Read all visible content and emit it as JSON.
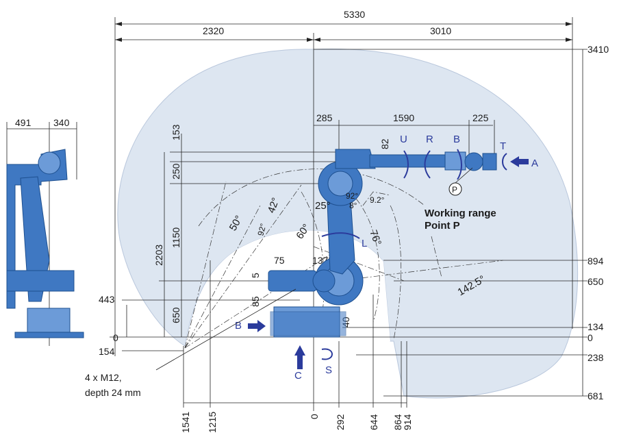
{
  "colors": {
    "working_area": "#dde6f1",
    "robot_body": "#3f78c2",
    "arrow": "#2b3b9c",
    "line": "#222222"
  },
  "dimensions": {
    "top_total": "5330",
    "top_left": "2320",
    "top_right": "3010",
    "arm_285": "285",
    "arm_1590": "1590",
    "arm_225": "225",
    "arm_82": "82",
    "side_153": "153",
    "side_250": "250",
    "side_1150": "1150",
    "side_650": "650",
    "side_2203": "2203",
    "side_443": "443",
    "side_5": "5",
    "side_85": "85",
    "side_75": "75",
    "side_1375": "1375",
    "side_40": "40",
    "left_0": "0",
    "left_154": "154",
    "right_3410": "3410",
    "right_894": "894",
    "right_650": "650",
    "right_134": "134",
    "right_0": "0",
    "right_238": "238",
    "right_681": "681",
    "bottom_1541": "1541",
    "bottom_1215": "1215",
    "bottom_0": "0",
    "bottom_292": "292",
    "bottom_644": "644",
    "bottom_864": "864",
    "bottom_914": "914",
    "side_view_491": "491",
    "side_view_340": "340"
  },
  "angles": {
    "a50": "50°",
    "a42": "42°",
    "a92_left": "92°",
    "a60": "60°",
    "a25": "25°",
    "a92_top": "92°",
    "a8": "8°",
    "a92_right": "9.2°",
    "a76": "76°",
    "a1425": "142.5°"
  },
  "axes": {
    "U": "U",
    "R": "R",
    "B": "B",
    "T": "T",
    "A": "A",
    "L": "L",
    "S": "S",
    "C": "C",
    "B_base": "B",
    "P": "P"
  },
  "labels": {
    "working_range": "Working range",
    "point_p": "Point P",
    "mount_line1": "4 x M12,",
    "mount_line2": "depth 24 mm"
  }
}
